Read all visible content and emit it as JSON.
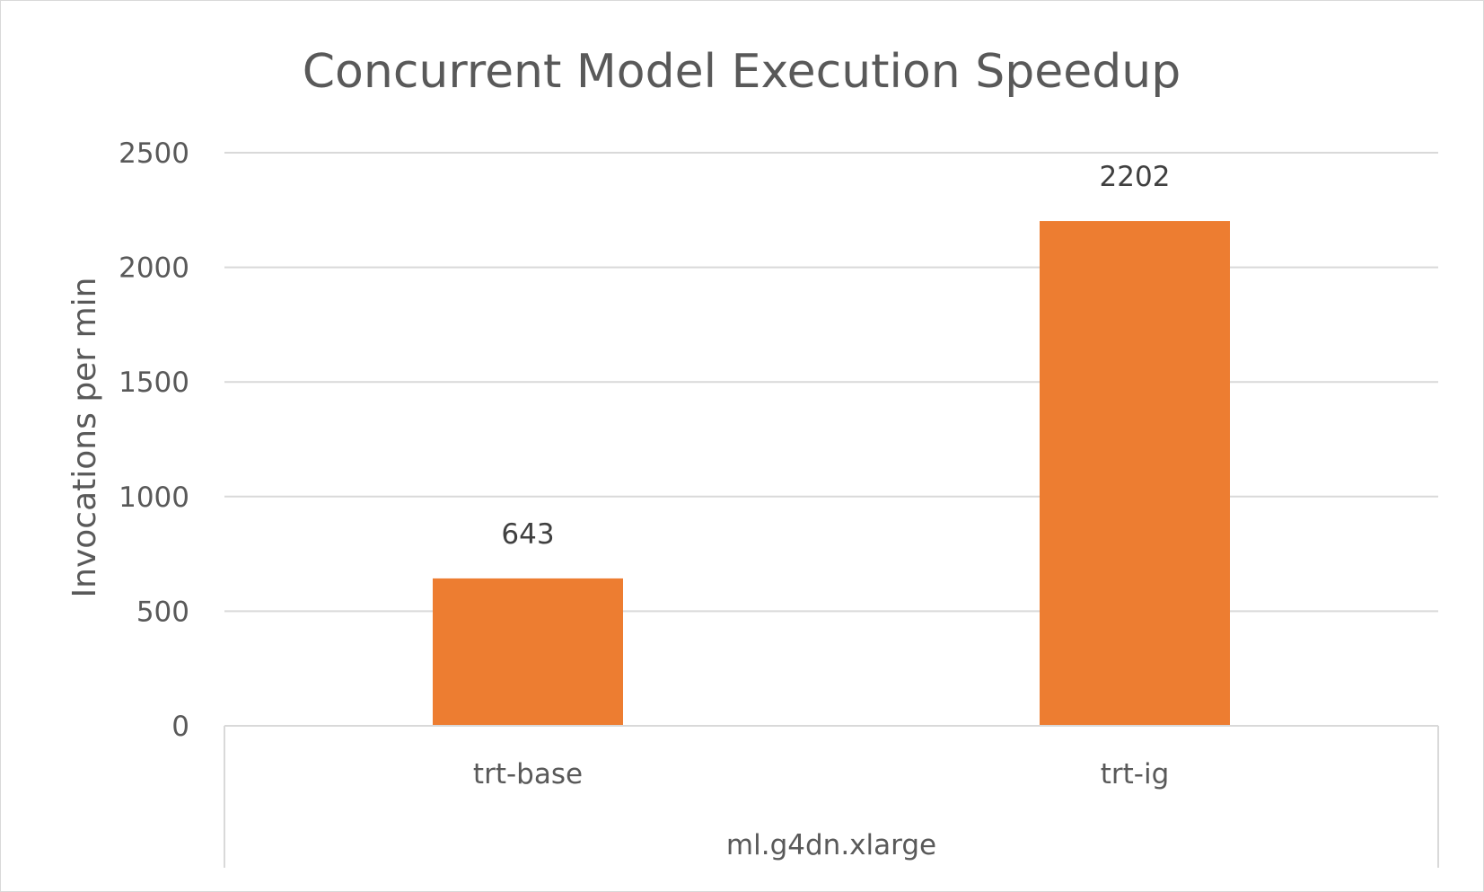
{
  "chart_data": {
    "type": "bar",
    "title": "Concurrent Model Execution Speedup",
    "xlabel": "",
    "ylabel": "Invocations per min",
    "categories": [
      "trt-base",
      "trt-ig"
    ],
    "group_label": "ml.g4dn.xlarge",
    "series": [
      {
        "values": [
          643,
          2202
        ],
        "color": "#ED7D31"
      }
    ],
    "data_labels": [
      "643",
      "2202"
    ],
    "ylim": [
      0,
      2500
    ],
    "yticks": [
      0,
      500,
      1000,
      1500,
      2000,
      2500
    ],
    "ytick_labels": [
      "0",
      "500",
      "1000",
      "1500",
      "2000",
      "2500"
    ],
    "grid": true,
    "legend": "none"
  }
}
